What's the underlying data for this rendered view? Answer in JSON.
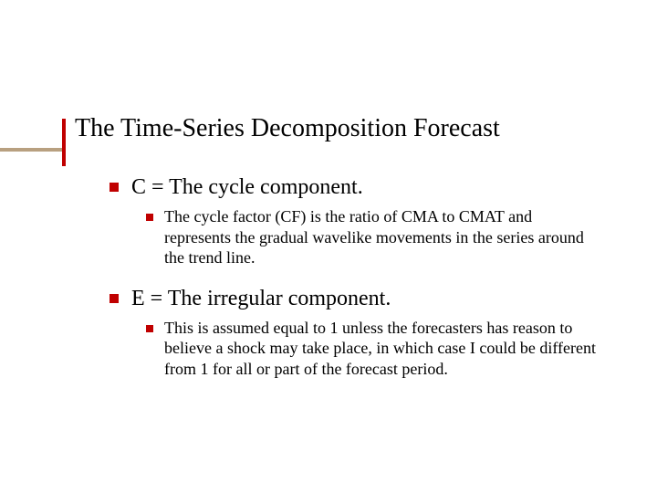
{
  "colors": {
    "bullet": "#c00000",
    "decor_h": "#b8a080",
    "decor_v": "#c00000",
    "text": "#000000",
    "background": "#ffffff"
  },
  "typography": {
    "title_fontsize": 28,
    "l1_fontsize": 24,
    "l2_fontsize": 18,
    "font_family": "Times New Roman"
  },
  "slide": {
    "title": "The Time-Series Decomposition Forecast",
    "items": [
      {
        "text": "C = The cycle component.",
        "sub": [
          "The cycle factor (CF) is the ratio of CMA to CMAT and represents the gradual wavelike movements in the series around the trend line."
        ]
      },
      {
        "text": "E = The irregular component.",
        "sub": [
          "This is assumed equal to 1 unless the forecasters has reason to believe a shock may  take place, in which case I could be different from 1 for all or part of the forecast period."
        ]
      }
    ]
  }
}
